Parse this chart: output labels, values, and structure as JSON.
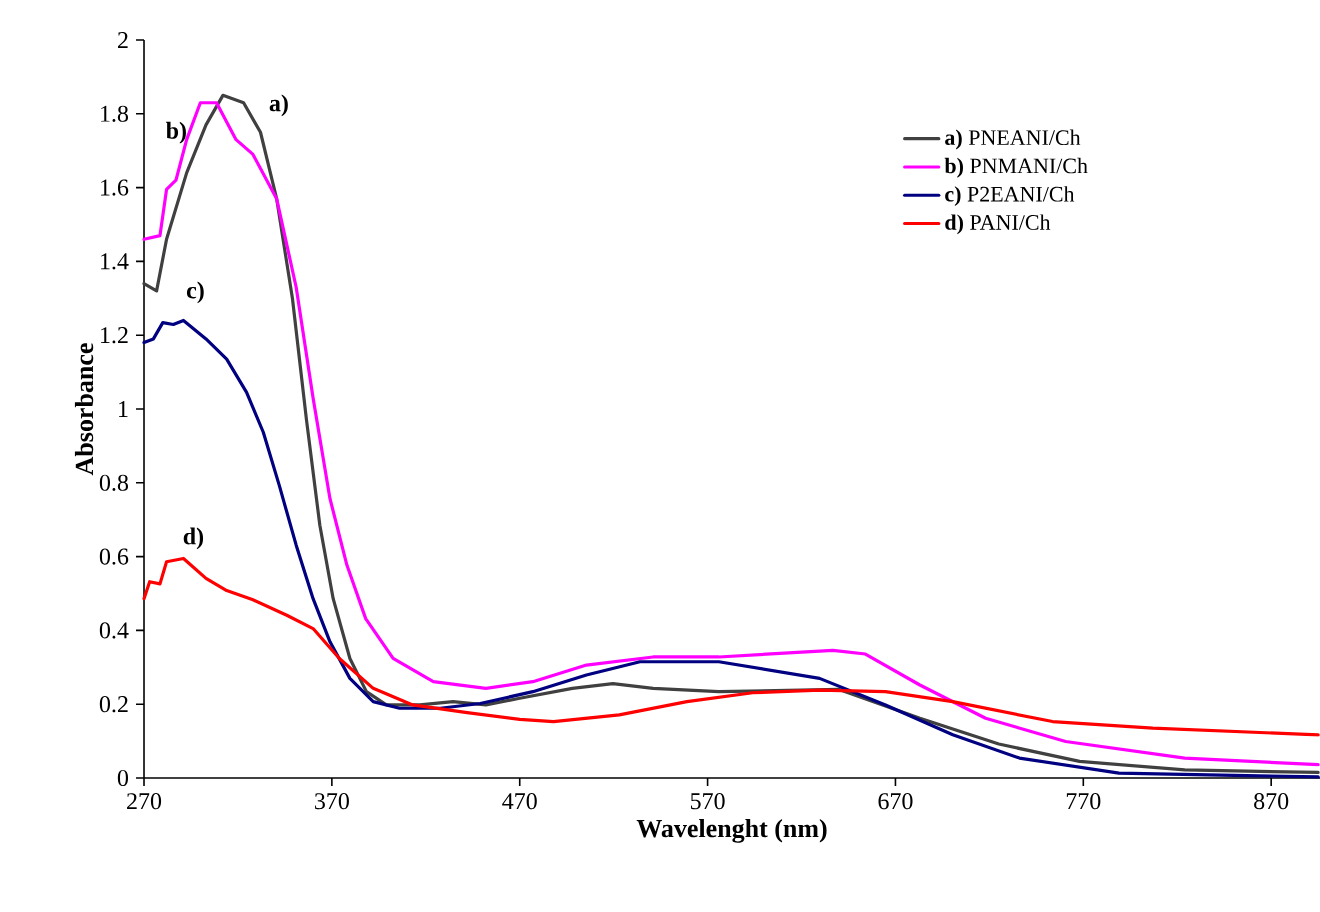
{
  "chart_data": {
    "type": "line",
    "xlabel": "Wavelenght (nm)",
    "ylabel": "Absorbance",
    "xlim": [
      270,
      896
    ],
    "ylim": [
      0,
      2
    ],
    "xticks": [
      270,
      370,
      470,
      570,
      670,
      770,
      870
    ],
    "yticks": [
      0,
      0.2,
      0.4,
      0.6,
      0.8,
      1,
      1.2,
      1.4,
      1.6,
      1.8,
      2
    ],
    "legend": "top right",
    "series": [
      {
        "name": "**a)** PNEANI/Ch",
        "color": "#404040",
        "x": [
          270,
          276.7,
          282,
          292.7,
          303,
          312,
          323,
          332,
          340.6,
          349,
          356.5,
          363.6,
          370.7,
          379.6,
          388.4,
          399,
          416.8,
          434.5,
          452,
          470,
          498,
          519.6,
          541,
          576,
          640,
          683,
          725,
          768,
          824,
          895
        ],
        "values": [
          1.34,
          1.32,
          1.46,
          1.64,
          1.77,
          1.85,
          1.83,
          1.75,
          1.57,
          1.3,
          0.97,
          0.685,
          0.486,
          0.324,
          0.234,
          0.198,
          0.198,
          0.207,
          0.198,
          0.216,
          0.243,
          0.256,
          0.243,
          0.234,
          0.24,
          0.162,
          0.092,
          0.045,
          0.022,
          0.015
        ]
      },
      {
        "name": "**b)** PNMANI/Ch",
        "color": "#ff00ff",
        "x": [
          270,
          278.5,
          282,
          287,
          292.7,
          300,
          308.6,
          319,
          328,
          340.6,
          351,
          360,
          369,
          378,
          388,
          402.6,
          424,
          452,
          477,
          505.5,
          541,
          576,
          636.7,
          654,
          683,
          718,
          760.6,
          824,
          895
        ],
        "values": [
          1.46,
          1.47,
          1.595,
          1.62,
          1.73,
          1.83,
          1.83,
          1.73,
          1.69,
          1.57,
          1.33,
          1.03,
          0.757,
          0.577,
          0.432,
          0.324,
          0.261,
          0.243,
          0.261,
          0.306,
          0.328,
          0.328,
          0.346,
          0.336,
          0.252,
          0.162,
          0.099,
          0.054,
          0.036
        ]
      },
      {
        "name": "**c)** P2EANI/Ch",
        "color": "#000080",
        "x": [
          270,
          275,
          280,
          285.6,
          291,
          303,
          314,
          324.6,
          333.5,
          342,
          351,
          360,
          369,
          379.6,
          392,
          406,
          427.7,
          449,
          477,
          505.5,
          534,
          576,
          629.6,
          664.7,
          700.5,
          736,
          789,
          895
        ],
        "values": [
          1.18,
          1.19,
          1.234,
          1.229,
          1.24,
          1.19,
          1.135,
          1.045,
          0.937,
          0.793,
          0.631,
          0.486,
          0.369,
          0.27,
          0.207,
          0.189,
          0.189,
          0.202,
          0.234,
          0.279,
          0.315,
          0.315,
          0.27,
          0.198,
          0.117,
          0.054,
          0.013,
          0.003
        ]
      },
      {
        "name": "**d)** PANI/Ch",
        "color": "#ff0000",
        "x": [
          270,
          273,
          278.5,
          282,
          291,
          303,
          314,
          328,
          346,
          360,
          374,
          392,
          413,
          442,
          470,
          488,
          523,
          559,
          594,
          629.6,
          664.7,
          700.5,
          753.6,
          807,
          895
        ],
        "values": [
          0.486,
          0.532,
          0.526,
          0.586,
          0.595,
          0.541,
          0.508,
          0.483,
          0.441,
          0.405,
          0.324,
          0.243,
          0.198,
          0.177,
          0.159,
          0.153,
          0.171,
          0.207,
          0.231,
          0.238,
          0.234,
          0.207,
          0.153,
          0.135,
          0.117
        ]
      }
    ],
    "annotations": [
      "a)",
      "b)",
      "c)",
      "d)"
    ]
  }
}
